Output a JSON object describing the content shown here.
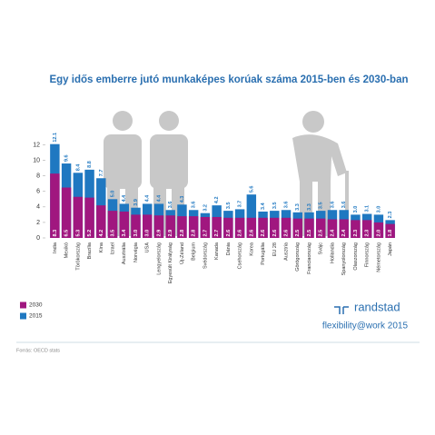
{
  "chart_data": {
    "type": "overlap-bar",
    "title": "Egy idős emberre jutó munkaképes korúak száma 2015-ben és 2030-ban",
    "categories": [
      "India",
      "Mexikó",
      "Törökország",
      "Brazília",
      "Kína",
      "Izrael",
      "Ausztrália",
      "Norvégia",
      "USA",
      "Lengyelország",
      "Egyesült Királyság",
      "Új-Zéland",
      "Belgium",
      "Svédország",
      "Kanada",
      "Dánia",
      "Csehország",
      "Korea",
      "Portugália",
      "EU 28",
      "Ausztria",
      "Görögország",
      "Franciaország",
      "Svájc",
      "Hollandia",
      "Spanyolország",
      "Olaszország",
      "Finnország",
      "Németország",
      "Japán"
    ],
    "series": [
      {
        "name": "2015",
        "color": "#1f78c1",
        "values": [
          12.1,
          9.6,
          8.4,
          8.8,
          7.7,
          5.0,
          4.4,
          3.9,
          4.4,
          4.4,
          3.6,
          4.3,
          3.6,
          3.2,
          4.2,
          3.5,
          3.7,
          5.6,
          3.4,
          3.5,
          3.6,
          3.3,
          3.3,
          3.5,
          3.6,
          3.6,
          3.0,
          3.1,
          3.0,
          2.3
        ],
        "value_labels": [
          "12.1",
          "9.6",
          "8.4",
          "8.8",
          "7.7",
          "5.0",
          "4.4",
          "3.9",
          "4.4",
          "4.4",
          "3.6",
          "4.3",
          "3.6",
          "3.2",
          "4.2",
          "3.5",
          "3.7",
          "5.6",
          "3.4",
          "3.5",
          "3.6",
          "3.3",
          "3.3",
          "3.5",
          "3.6",
          "3.6",
          "3.0",
          "3.1",
          "3.0",
          "2.3"
        ]
      },
      {
        "name": "2030",
        "color": "#a0177f",
        "values": [
          8.3,
          6.5,
          5.3,
          5.2,
          4.2,
          3.5,
          3.4,
          3.0,
          3.0,
          2.9,
          2.9,
          2.8,
          2.8,
          2.7,
          2.7,
          2.6,
          2.6,
          2.6,
          2.6,
          2.6,
          2.6,
          2.5,
          2.5,
          2.5,
          2.4,
          2.4,
          2.3,
          2.3,
          2.0,
          1.8
        ],
        "value_labels": [
          "8.3",
          "6.5",
          "5.3",
          "5.2",
          "4.2",
          "3.5",
          "3.4",
          "3.0",
          "3.0",
          "2.9",
          "2.9",
          "2.8",
          "2.8",
          "2.7",
          "2.7",
          "2.6",
          "2.6",
          "2.6",
          "2.6",
          "2.6",
          "2.6",
          "2.5",
          "2.5",
          "2.5",
          "2.4",
          "2.4",
          "2.3",
          "2.3",
          "2.0",
          "1.8"
        ]
      }
    ],
    "ylim": [
      0,
      13
    ],
    "yticks": [
      0,
      2,
      4,
      6,
      8,
      10,
      12
    ],
    "legend": "bottom-left"
  },
  "branding": {
    "logo": "randstad",
    "tagline": "flexibility@work 2015"
  },
  "source": "Forrás: OECD stats"
}
